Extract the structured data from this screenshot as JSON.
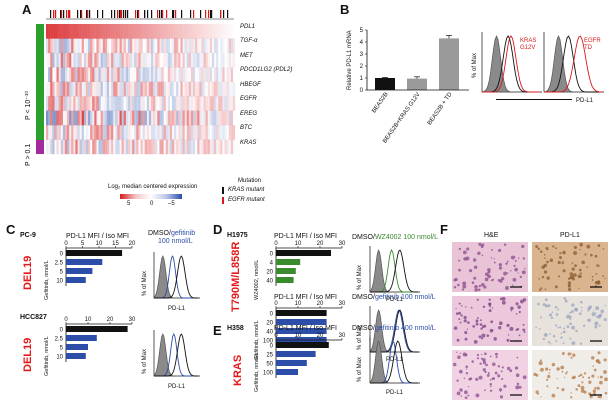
{
  "panels": {
    "a": "A",
    "b": "B",
    "c": "C",
    "d": "D",
    "e": "E",
    "f": "F"
  },
  "panel_a": {
    "p_top": "P < 10⁻¹⁰",
    "p_bottom": "P > 0.1",
    "genes": [
      "PDL1",
      "TGF-α",
      "MET",
      "PDCD1LG2 (PDL2)",
      "HBEGF",
      "EGFR",
      "EREG",
      "BTC",
      "KRAS"
    ],
    "scale_title": "Log₂ median centered expression",
    "scale_ticks": [
      "5",
      "0",
      "–5"
    ],
    "mutation_title": "Mutation",
    "mutation_kras": "KRAS mutant",
    "mutation_egfr": "EGFR mutant",
    "colors": {
      "red": "#d7191c",
      "blue": "#2c4ea8",
      "green": "#2ca02c",
      "magenta": "#a12a9c"
    }
  },
  "panel_b": {
    "ylabel": "Relative PD-L1 mRNA",
    "yticks": [
      "0",
      "1",
      "2",
      "3",
      "4",
      "5"
    ],
    "categories": [
      "BEAS2B",
      "BEAS2B+KRAS G12V",
      "BEAS2B + TD"
    ],
    "values": [
      1.0,
      0.95,
      4.3
    ],
    "errors": [
      0.05,
      0.15,
      0.25
    ],
    "flow_ylabel": "% of Max",
    "flow_xlabel": "PD-L1",
    "flow1_label": "KRAS\nG12V",
    "flow2_label": "EGFR\nTD"
  },
  "panel_c": {
    "cell1": "PC-9",
    "cell2": "HCC827",
    "mutation": "DEL19",
    "mfi_title": "PD-L1 MFI / Iso MFI",
    "ylabel": "Gefitinib, nmol/L",
    "doses": [
      "0",
      "2.5",
      "5",
      "10"
    ],
    "ticks1": [
      "0",
      "5",
      "10",
      "15",
      "20"
    ],
    "values1": [
      17,
      11,
      8,
      6
    ],
    "ticks2": [
      "0",
      "10",
      "20",
      "30"
    ],
    "values2": [
      28,
      14,
      10,
      9
    ],
    "flow_title_a": "DMSO/",
    "flow_title_b": "gefitinib",
    "flow_title_c": "100 nmol/L",
    "flow_ylabel": "% of Max",
    "flow_xlabel": "PD-L1"
  },
  "panel_d": {
    "cell": "H1975",
    "mutation": "T790M/L858R",
    "mfi_title": "PD-L1 MFI / Iso MFI",
    "ticks": [
      "0",
      "10",
      "20",
      "30"
    ],
    "ylabel1": "WZ4002, nmol/L",
    "ylabel2": "Gefitinib, nmol/L",
    "doses1": [
      "0",
      "4",
      "20",
      "40"
    ],
    "values1": [
      25,
      11,
      9,
      8
    ],
    "doses2": [
      "0",
      "20",
      "40",
      "100"
    ],
    "values2": [
      23,
      23,
      23,
      23
    ],
    "flow1_a": "DMSO/",
    "flow1_b": "WZ4002 100 nmol/L",
    "flow2_a": "DMSO/",
    "flow2_b": "gefitinib 100 nmol/L",
    "flow_ylabel": "% of Max",
    "flow_xlabel": "PD-L1"
  },
  "panel_e": {
    "cell": "H358",
    "mutation": "KRAS",
    "mfi_title": "PD-L1 MFI / Iso MFI",
    "ticks": [
      "0",
      "10",
      "20",
      "30"
    ],
    "ylabel": "Gefitinib, nmol/L",
    "doses": [
      "0",
      "25",
      "50",
      "100"
    ],
    "values": [
      24,
      18,
      14,
      10
    ],
    "flow_a": "DMSO/",
    "flow_b": "gefitinib 400 nmol/L",
    "flow_ylabel": "% of Max",
    "flow_xlabel": "PD-L1"
  },
  "panel_f": {
    "col1": "H&E",
    "col2": "PD-L1"
  }
}
